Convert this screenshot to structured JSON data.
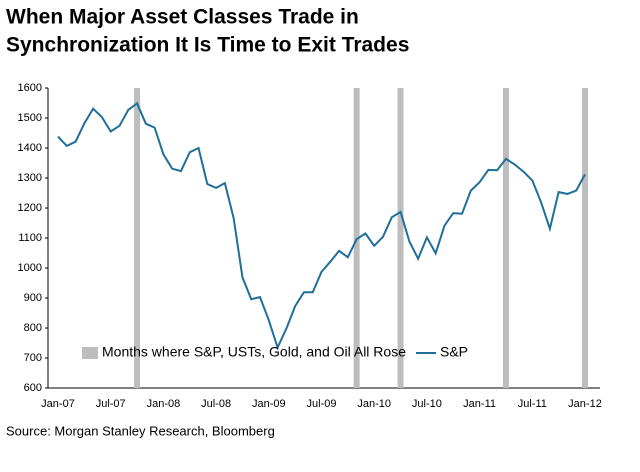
{
  "chart_data": {
    "type": "line",
    "title": [
      "When Major Asset Classes Trade in",
      "Synchronization It Is Time to Exit Trades"
    ],
    "source": "Source:  Morgan Stanley Research, Bloomberg",
    "categories": [
      "Jan-07",
      null,
      null,
      null,
      null,
      null,
      "Jul-07",
      null,
      null,
      null,
      null,
      null,
      "Jan-08",
      null,
      null,
      null,
      null,
      null,
      "Jul-08",
      null,
      null,
      null,
      null,
      null,
      "Jan-09",
      null,
      null,
      null,
      null,
      null,
      "Jul-09",
      null,
      null,
      null,
      null,
      null,
      "Jan-10",
      null,
      null,
      null,
      null,
      null,
      "Jul-10",
      null,
      null,
      null,
      null,
      null,
      "Jan-11",
      null,
      null,
      null,
      null,
      null,
      "Jul-11",
      null,
      null,
      null,
      null,
      null,
      "Jan-12"
    ],
    "series": [
      {
        "name": "Months where S&P, USTs, Gold, and Oil All Rose",
        "type": "bar",
        "color": "#bdbdbd",
        "values": [
          null,
          null,
          null,
          null,
          null,
          null,
          null,
          null,
          null,
          1600,
          null,
          null,
          null,
          null,
          null,
          null,
          null,
          null,
          null,
          null,
          null,
          null,
          null,
          null,
          null,
          null,
          null,
          null,
          null,
          null,
          null,
          null,
          null,
          null,
          1600,
          null,
          null,
          null,
          null,
          1600,
          null,
          null,
          null,
          null,
          null,
          null,
          null,
          null,
          null,
          null,
          null,
          1600,
          null,
          null,
          null,
          null,
          null,
          null,
          null,
          null,
          1600
        ]
      },
      {
        "name": "S&P",
        "type": "line",
        "color": "#1f6f9a",
        "values": [
          1438,
          1407,
          1421,
          1482,
          1531,
          1503,
          1455,
          1474,
          1527,
          1549,
          1481,
          1468,
          1379,
          1331,
          1323,
          1386,
          1400,
          1280,
          1267,
          1283,
          1166,
          969,
          896,
          903,
          826,
          735,
          798,
          873,
          919,
          919,
          987,
          1021,
          1057,
          1036,
          1096,
          1115,
          1074,
          1104,
          1169,
          1187,
          1089,
          1031,
          1102,
          1049,
          1141,
          1183,
          1181,
          1258,
          1286,
          1327,
          1326,
          1364,
          1345,
          1321,
          1292,
          1219,
          1131,
          1253,
          1247,
          1258,
          1312
        ]
      }
    ],
    "ylim": [
      600,
      1600
    ],
    "yticks": [
      600,
      700,
      800,
      900,
      1000,
      1100,
      1200,
      1300,
      1400,
      1500,
      1600
    ]
  }
}
